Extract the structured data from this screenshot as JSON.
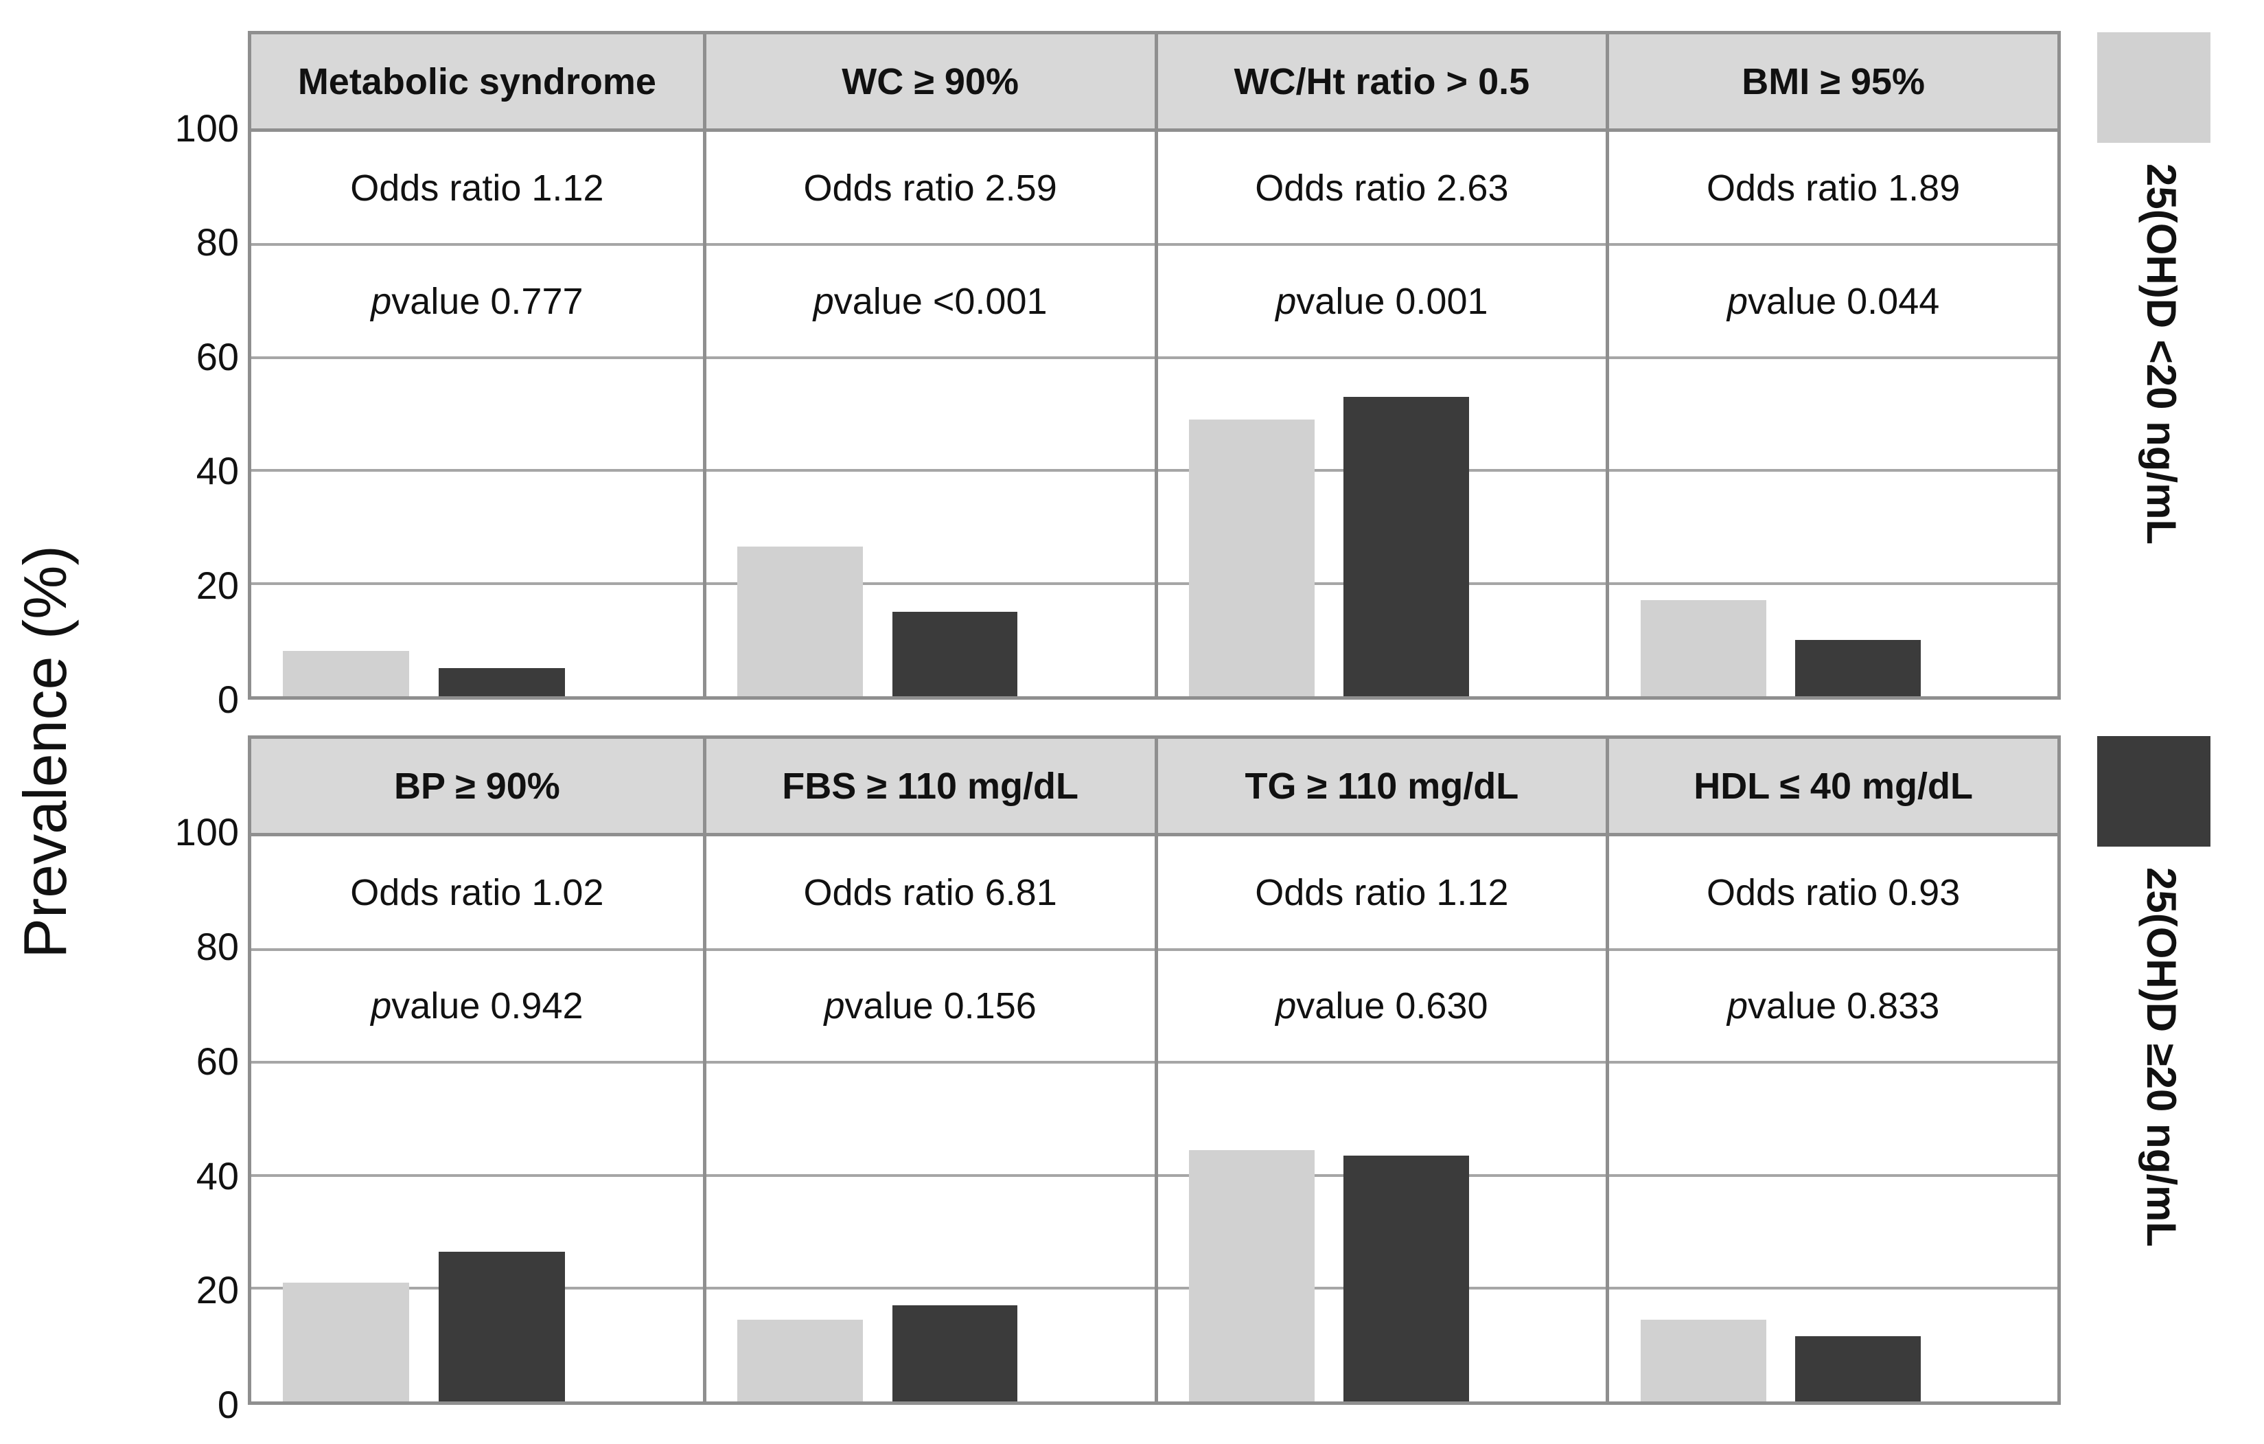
{
  "chart_data": {
    "type": "bar",
    "title": "",
    "ylabel": "Prevalence (%)",
    "ylim": [
      0,
      100
    ],
    "yticks": [
      100,
      80,
      60,
      40,
      20,
      0
    ],
    "grid": true,
    "legend_position": "right",
    "series": [
      {
        "name": "25(OH)D <20 ng/mL",
        "color": "#d1d1d1"
      },
      {
        "name": "25(OH)D ≥20 ng/mL",
        "color": "#3b3b3b"
      }
    ],
    "rows": [
      {
        "panels": [
          {
            "title": "Metabolic syndrome",
            "odds_ratio_label": "Odds ratio 1.12",
            "p_symbol": "p",
            "p_value_label": "value 0.777",
            "values": [
              8,
              5
            ]
          },
          {
            "title": "WC ≥ 90%",
            "odds_ratio_label": "Odds ratio 2.59",
            "p_symbol": "p",
            "p_value_label": "value <0.001",
            "values": [
              26.5,
              15
            ]
          },
          {
            "title": "WC/Ht ratio > 0.5",
            "odds_ratio_label": "Odds ratio 2.63",
            "p_symbol": "p",
            "p_value_label": "value 0.001",
            "values": [
              49,
              53
            ]
          },
          {
            "title": "BMI ≥ 95%",
            "odds_ratio_label": "Odds ratio 1.89",
            "p_symbol": "p",
            "p_value_label": "value 0.044",
            "values": [
              17,
              10
            ]
          }
        ]
      },
      {
        "panels": [
          {
            "title": "BP ≥ 90%",
            "odds_ratio_label": "Odds ratio 1.02",
            "p_symbol": "p",
            "p_value_label": "value 0.942",
            "values": [
              21,
              26.5
            ]
          },
          {
            "title": "FBS ≥ 110 mg/dL",
            "odds_ratio_label": "Odds ratio 6.81",
            "p_symbol": "p",
            "p_value_label": "value 0.156",
            "values": [
              14.5,
              17
            ]
          },
          {
            "title": "TG ≥ 110 mg/dL",
            "odds_ratio_label": "Odds ratio 1.12",
            "p_symbol": "p",
            "p_value_label": "value 0.630",
            "values": [
              44.5,
              43.5
            ]
          },
          {
            "title": "HDL ≤ 40 mg/dL",
            "odds_ratio_label": "Odds ratio 0.93",
            "p_symbol": "p",
            "p_value_label": "value 0.833",
            "values": [
              14.5,
              11.5
            ]
          }
        ]
      }
    ]
  }
}
